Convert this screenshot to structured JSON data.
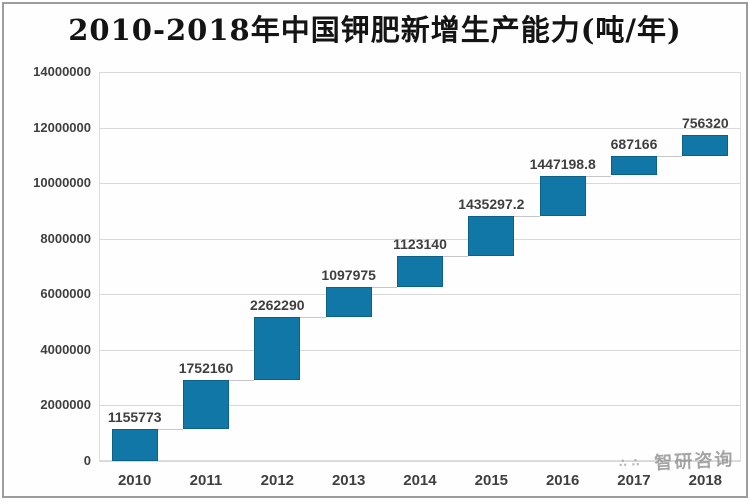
{
  "title": "2010-2018年中国钾肥新增生产能力(吨/年)",
  "watermark": {
    "text": "智研咨询",
    "dots": "∴ ∴"
  },
  "colors": {
    "bar_fill": "#1177a6",
    "bar_border": "#0d6187",
    "gridline": "#d9d9d9",
    "connector": "#c6c6c6",
    "axis_text": "#3f3f3f",
    "title_text": "#141414",
    "frame_border": "#9c9c9c"
  },
  "chart_data": {
    "type": "bar",
    "subtype": "waterfall-floating",
    "title": "2010-2018年中国钾肥新增生产能力(吨/年)",
    "categories": [
      "2010",
      "2011",
      "2012",
      "2013",
      "2014",
      "2015",
      "2016",
      "2017",
      "2018"
    ],
    "values": [
      1155773,
      1752160,
      2262290,
      1097975,
      1123140,
      1435297.2,
      1447198.8,
      687166,
      756320
    ],
    "value_labels": [
      "1155773",
      "1752160",
      "2262290",
      "1097975",
      "1123140",
      "1435297.2",
      "1447198.8",
      "687166",
      "756320"
    ],
    "cumulative_note": "each bar floats, starting at the cumulative sum of all previous years",
    "xlabel": "",
    "ylabel": "",
    "ylim": [
      0,
      14000000
    ],
    "ytick_step": 2000000,
    "yticks": [
      "0",
      "2000000",
      "4000000",
      "6000000",
      "8000000",
      "10000000",
      "12000000",
      "14000000"
    ],
    "grid": true,
    "legend": false
  }
}
